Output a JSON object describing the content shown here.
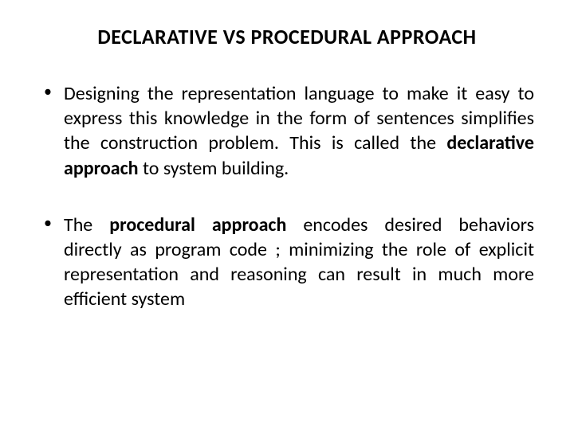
{
  "title": "DECLARATIVE VS PROCEDURAL APPROACH",
  "bullets": [
    {
      "pre": " Designing the representation language to make it easy to express this knowledge in the form of sentences simplifies the construction  problem. This is called the ",
      "bold": "declarative approach",
      "post": " to system building."
    },
    {
      "pre": " The ",
      "bold": "procedural approach",
      "post": " encodes desired behaviors directly as program code ; minimizing the role of explicit representation and reasoning can result in much more efficient system"
    }
  ],
  "styling": {
    "background_color": "#ffffff",
    "text_color": "#000000",
    "title_fontsize": 26,
    "body_fontsize": 24,
    "font_family": "Calibri, Arial, sans-serif"
  }
}
